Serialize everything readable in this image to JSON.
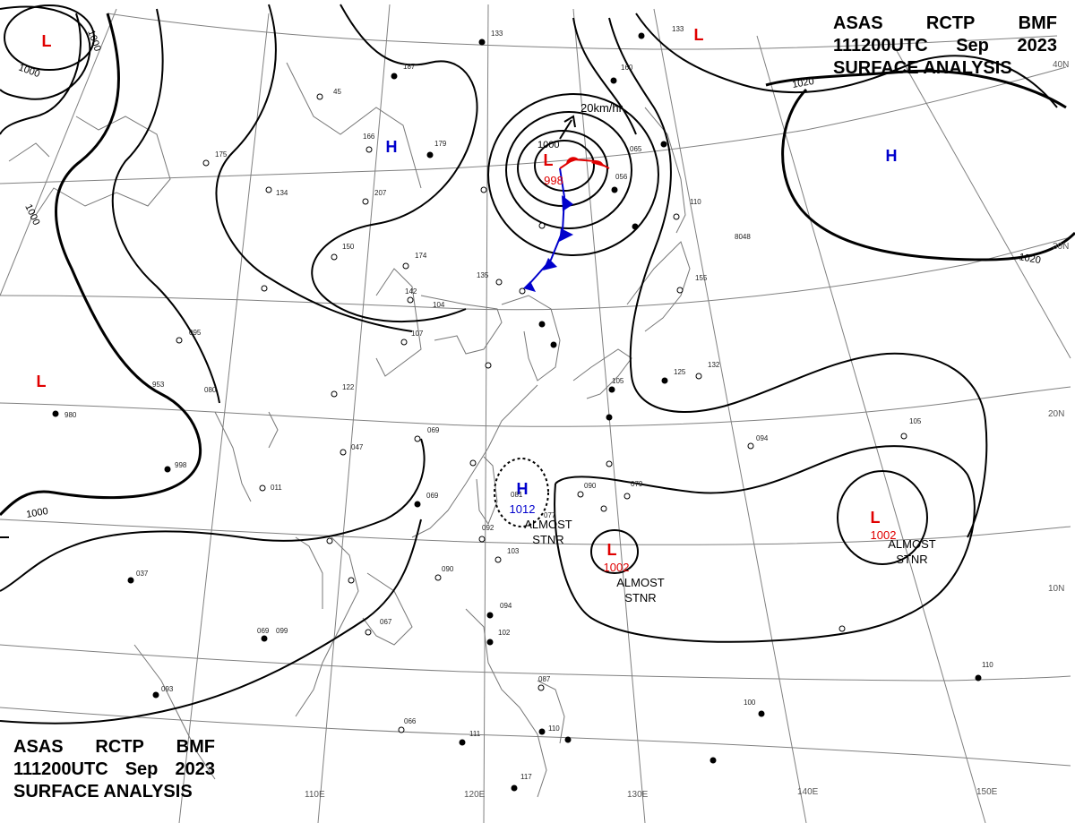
{
  "header": {
    "line1": [
      "ASAS",
      "RCTP",
      "BMF"
    ],
    "line2": [
      "111200UTC",
      "Sep",
      "2023"
    ],
    "line3": "SURFACE ANALYSIS"
  },
  "lat_labels": [
    "40N",
    "30N",
    "20N",
    "10N"
  ],
  "lon_labels": [
    "110E",
    "120E",
    "130E",
    "140E",
    "150E"
  ],
  "isobar_labels": [
    "1000",
    "1000",
    "1000",
    "1000",
    "1020",
    "1020"
  ],
  "pressure_systems": [
    {
      "kind": "L",
      "value": ""
    },
    {
      "kind": "L",
      "value": ""
    },
    {
      "kind": "L",
      "value": ""
    },
    {
      "kind": "H",
      "value": ""
    },
    {
      "kind": "H",
      "value": ""
    },
    {
      "kind": "L",
      "value": "998"
    },
    {
      "kind": "H",
      "value": "1012"
    },
    {
      "kind": "L",
      "value": "1002"
    },
    {
      "kind": "L",
      "value": "1002"
    }
  ],
  "notes": {
    "motion": "20km/hr",
    "stnr": [
      "ALMOST",
      "STNR"
    ],
    "center_1000": "1000"
  },
  "station_values": [
    "133",
    "187",
    "45",
    "166",
    "179",
    "175",
    "134",
    "207",
    "150",
    "174",
    "142",
    "135",
    "104",
    "107",
    "122",
    "095",
    "080",
    "953",
    "980",
    "998",
    "011",
    "047",
    "069",
    "069",
    "092",
    "103",
    "090",
    "037",
    "099",
    "067",
    "081",
    "077",
    "090",
    "079",
    "094",
    "105",
    "087",
    "094",
    "102",
    "110",
    "111",
    "117",
    "066",
    "069",
    "093",
    "100",
    "110",
    "133",
    "155",
    "132",
    "125",
    "105",
    "110",
    "056",
    "065",
    "160",
    "8048"
  ],
  "colors": {
    "low": "#e00000",
    "high": "#0000cc",
    "isobar": "#000000",
    "grid": "#808080",
    "coast": "#777777"
  }
}
